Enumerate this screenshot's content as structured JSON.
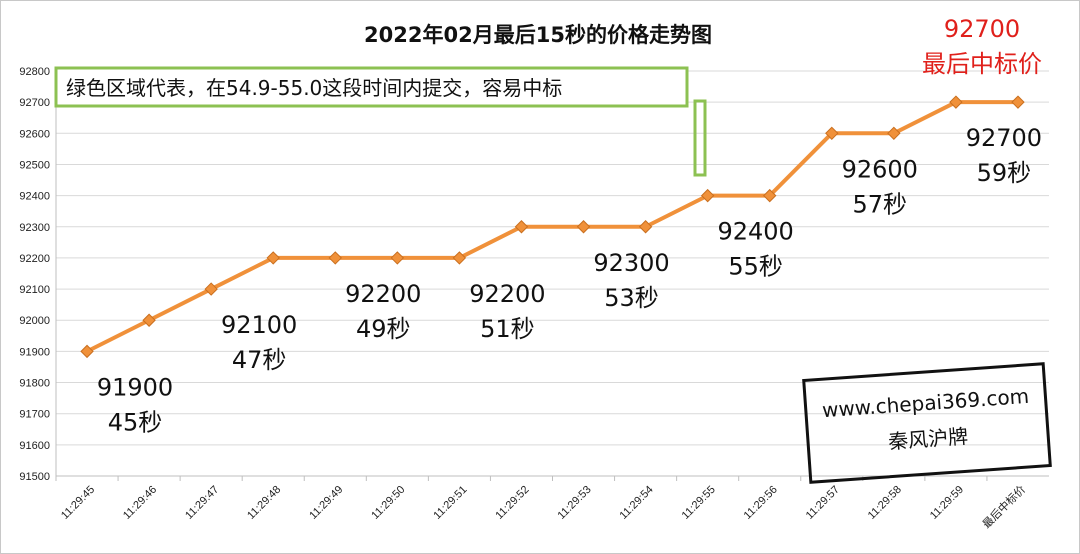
{
  "chart_data": {
    "type": "line",
    "title": "2022年02月最后15秒的价格走势图",
    "categories": [
      "11:29:45",
      "11:29:46",
      "11:29:47",
      "11:29:48",
      "11:29:49",
      "11:29:50",
      "11:29:51",
      "11:29:52",
      "11:29:53",
      "11:29:54",
      "11:29:55",
      "11:29:56",
      "11:29:57",
      "11:29:58",
      "11:29:59",
      "最后中标价"
    ],
    "series": [
      {
        "values": [
          91900,
          92000,
          92100,
          92200,
          92200,
          92200,
          92200,
          92300,
          92300,
          92300,
          92400,
          92400,
          92600,
          92600,
          92700,
          92700
        ]
      }
    ],
    "ylim": [
      91500,
      92800
    ],
    "yticks": [
      91500,
      91600,
      91700,
      91800,
      91900,
      92000,
      92100,
      92200,
      92300,
      92400,
      92500,
      92600,
      92700,
      92800
    ],
    "grid": true,
    "line_color": "#f0913a",
    "marker_color": "#f0913a",
    "annotations": [
      {
        "category_index": 0,
        "lines": [
          "91900",
          "45秒"
        ]
      },
      {
        "category_index": 2,
        "lines": [
          "92100",
          "47秒"
        ]
      },
      {
        "category_index": 4,
        "lines": [
          "92200",
          "49秒"
        ]
      },
      {
        "category_index": 6,
        "lines": [
          "92200",
          "51秒"
        ]
      },
      {
        "category_index": 8,
        "lines": [
          "92300",
          "53秒"
        ]
      },
      {
        "category_index": 10,
        "lines": [
          "92400",
          "55秒"
        ]
      },
      {
        "category_index": 12,
        "lines": [
          "92600",
          "57秒"
        ]
      },
      {
        "category_index": 14,
        "lines": [
          "92700",
          "59秒"
        ]
      }
    ],
    "final_price": {
      "value": "92700",
      "label": "最后中标价",
      "color": "#e0201b"
    },
    "note": {
      "text": "绿色区域代表，在54.9-55.0这段时间内提交，容易中标",
      "color": "#8cc152"
    },
    "watermark": {
      "line1": "www.chepai369.com",
      "line2": "秦风沪牌"
    }
  }
}
